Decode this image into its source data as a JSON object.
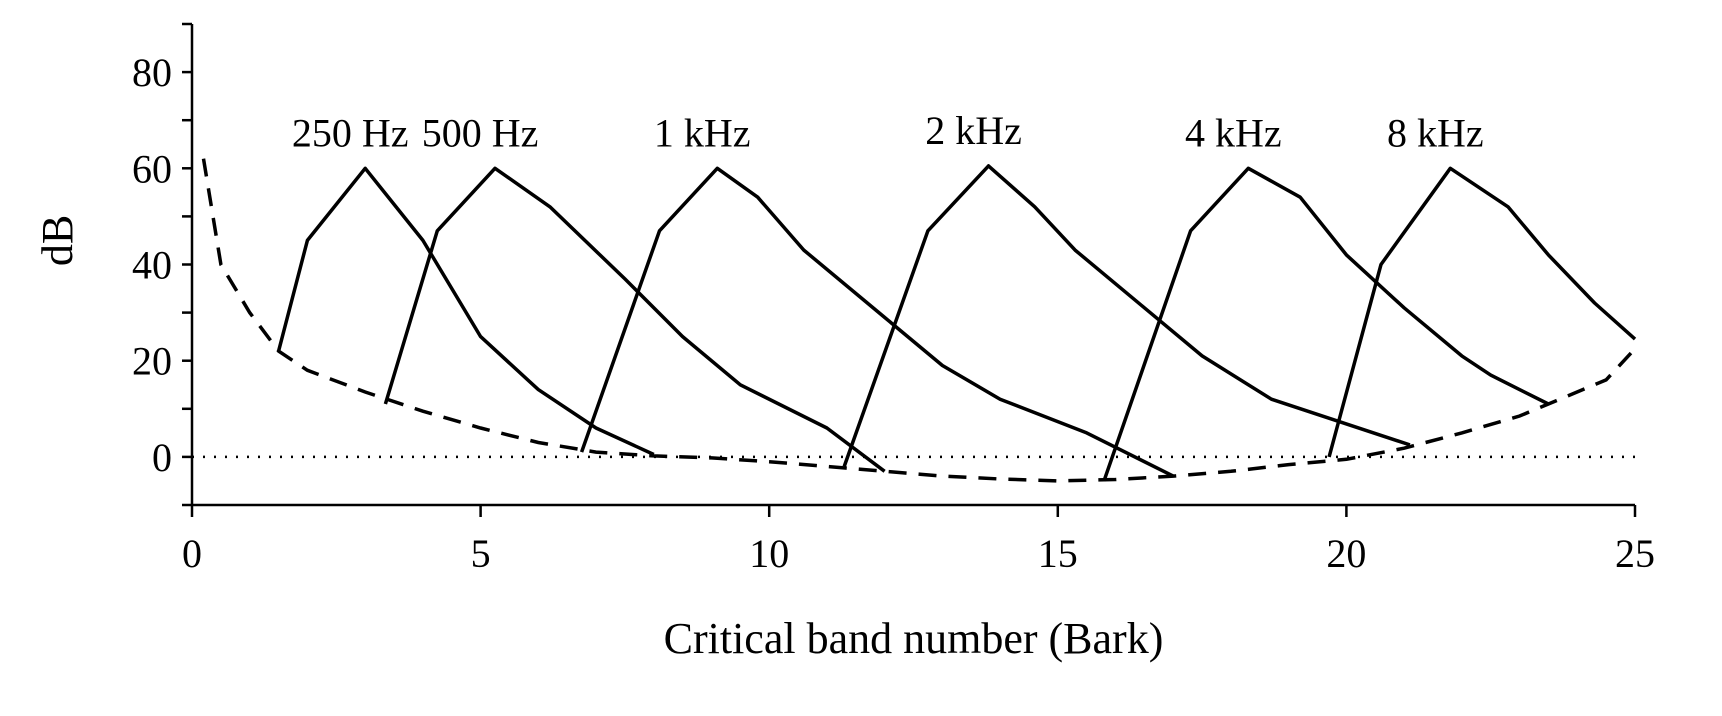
{
  "chart_data": {
    "type": "line",
    "xlabel": "Critical band number (Bark)",
    "ylabel": "dB",
    "xlim": [
      0,
      25
    ],
    "ylim": [
      -10,
      90
    ],
    "xticks": [
      0,
      5,
      10,
      15,
      20,
      25
    ],
    "xtick_labels": [
      "0",
      "5",
      "10",
      "15",
      "20",
      "25"
    ],
    "yticks": [
      0,
      20,
      40,
      60,
      80
    ],
    "ytick_labels": [
      "0",
      "20",
      "40",
      "60",
      "80"
    ],
    "grid": false,
    "reference_line": {
      "y": 0,
      "style": "dotted"
    },
    "series": [
      {
        "name": "250 Hz",
        "style": "solid",
        "points": [
          [
            1.5,
            22
          ],
          [
            2.0,
            45
          ],
          [
            3.0,
            60
          ],
          [
            4.0,
            45
          ],
          [
            5.0,
            25
          ],
          [
            6.0,
            14
          ],
          [
            7.0,
            6
          ],
          [
            8.0,
            0.5
          ]
        ]
      },
      {
        "name": "500 Hz",
        "style": "solid",
        "points": [
          [
            3.35,
            11
          ],
          [
            4.25,
            47
          ],
          [
            5.25,
            60
          ],
          [
            6.2,
            52
          ],
          [
            7.5,
            37
          ],
          [
            8.5,
            25
          ],
          [
            9.5,
            15
          ],
          [
            11.0,
            6
          ],
          [
            12.0,
            -3
          ]
        ]
      },
      {
        "name": "1 kHz",
        "style": "solid",
        "points": [
          [
            6.75,
            1
          ],
          [
            8.1,
            47
          ],
          [
            9.1,
            60
          ],
          [
            9.8,
            54
          ],
          [
            10.6,
            43
          ],
          [
            12.0,
            29
          ],
          [
            13.0,
            19
          ],
          [
            14.0,
            12
          ],
          [
            15.5,
            5
          ],
          [
            17.0,
            -4
          ]
        ]
      },
      {
        "name": "2 kHz",
        "style": "solid",
        "points": [
          [
            11.3,
            -2
          ],
          [
            12.75,
            47
          ],
          [
            13.8,
            60.5
          ],
          [
            14.6,
            52
          ],
          [
            15.3,
            43
          ],
          [
            16.5,
            31
          ],
          [
            17.5,
            21
          ],
          [
            18.7,
            12
          ],
          [
            21.1,
            2.5
          ]
        ]
      },
      {
        "name": "4 kHz",
        "style": "solid",
        "points": [
          [
            15.8,
            -5
          ],
          [
            17.3,
            47
          ],
          [
            18.3,
            60
          ],
          [
            19.2,
            54
          ],
          [
            20.0,
            42
          ],
          [
            21.0,
            31
          ],
          [
            22.0,
            21
          ],
          [
            22.5,
            17
          ],
          [
            23.5,
            11
          ]
        ]
      },
      {
        "name": "8 kHz",
        "style": "solid",
        "points": [
          [
            19.7,
            0
          ],
          [
            20.6,
            40
          ],
          [
            21.8,
            60
          ],
          [
            22.8,
            52
          ],
          [
            23.5,
            42
          ],
          [
            24.3,
            32
          ],
          [
            25.0,
            24.5
          ]
        ]
      },
      {
        "name": "",
        "style": "dashed",
        "points": [
          [
            0.2,
            62
          ],
          [
            0.5,
            40
          ],
          [
            1.0,
            30
          ],
          [
            1.5,
            22
          ],
          [
            2.0,
            18
          ],
          [
            3.0,
            13.5
          ],
          [
            4.0,
            9.5
          ],
          [
            5.0,
            6
          ],
          [
            6.0,
            3
          ],
          [
            7.0,
            1
          ],
          [
            8.0,
            0.2
          ],
          [
            9.0,
            -0.2
          ],
          [
            10.0,
            -1
          ],
          [
            11.0,
            -2
          ],
          [
            12.0,
            -3
          ],
          [
            13.0,
            -4
          ],
          [
            14.0,
            -4.6
          ],
          [
            15.0,
            -5
          ],
          [
            16.0,
            -4.7
          ],
          [
            17.0,
            -4
          ],
          [
            18.0,
            -3
          ],
          [
            19.0,
            -1.6
          ],
          [
            20.0,
            -0.5
          ],
          [
            21.0,
            1.8
          ],
          [
            22.0,
            5
          ],
          [
            23.0,
            8.5
          ],
          [
            23.5,
            11
          ],
          [
            24.5,
            16
          ],
          [
            25.0,
            22.5
          ]
        ]
      }
    ]
  }
}
